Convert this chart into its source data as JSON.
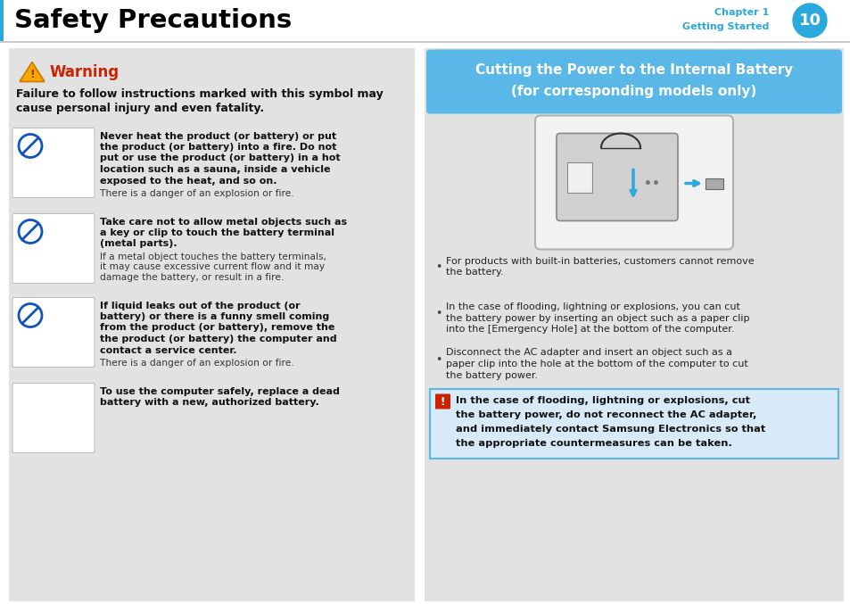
{
  "title": "Safety Precautions",
  "chapter_text1": "Chapter 1",
  "chapter_text2": "Getting Started",
  "page_number": "10",
  "title_color": "#000000",
  "chapter_color": "#2ba8dc",
  "page_circle_color": "#2ba8dc",
  "warning_title": "Warning",
  "warning_title_color": "#cc2200",
  "warning_intro": "Failure to follow instructions marked with this symbol may\ncause personal injury and even fatality.",
  "left_panel_bg": "#e2e2e2",
  "right_panel_bg": "#e2e2e2",
  "right_header_bg": "#5ab8e8",
  "right_header_text_line1": "Cutting the Power to the Internal Battery",
  "right_header_text_line2": "(for corresponding models only)",
  "right_header_text_color": "#ffffff",
  "notice_box_bg": "#d8eaf8",
  "notice_box_border": "#5ab8e8",
  "header_bg": "#ffffff",
  "header_border": "#cccccc",
  "header_blue_bar": "#2ba8dc",
  "body_bg": "#ffffff",
  "items": [
    {
      "bold": "Never heat the product (or battery) or put\nthe product (or battery) into a fire. Do not\nput or use the product (or battery) in a hot\nlocation such as a sauna, inside a vehicle\nexposed to the heat, and so on.",
      "normal": "There is a danger of an explosion or fire."
    },
    {
      "bold": "Take care not to allow metal objects such as\na key or clip to touch the battery terminal\n(metal parts).",
      "normal": "If a metal object touches the battery terminals,\nit may cause excessive current flow and it may\ndamage the battery, or result in a fire."
    },
    {
      "bold": "If liquid leaks out of the product (or\nbattery) or there is a funny smell coming\nfrom the product (or battery), remove the\nthe product (or battery) the computer and\ncontact a service center.",
      "normal": "There is a danger of an explosion or fire."
    },
    {
      "bold": "To use the computer safely, replace a dead\nbattery with a new, authorized battery.",
      "normal": ""
    }
  ],
  "right_bullets": [
    "For products with built-in batteries, customers cannot remove\nthe battery.",
    "In the case of flooding, lightning or explosions, you can cut\nthe battery power by inserting an object such as a paper clip\ninto the [Emergency Hole] at the bottom of the computer.",
    "Disconnect the AC adapter and insert an object such as a\npaper clip into the hole at the bottom of the computer to cut\nthe battery power."
  ],
  "notice_bold": "In the case of flooding, lightning or explosions, cut\nthe battery power, do not reconnect the AC adapter,\nand immediately contact Samsung Electronics so that\nthe appropriate countermeasures can be taken."
}
